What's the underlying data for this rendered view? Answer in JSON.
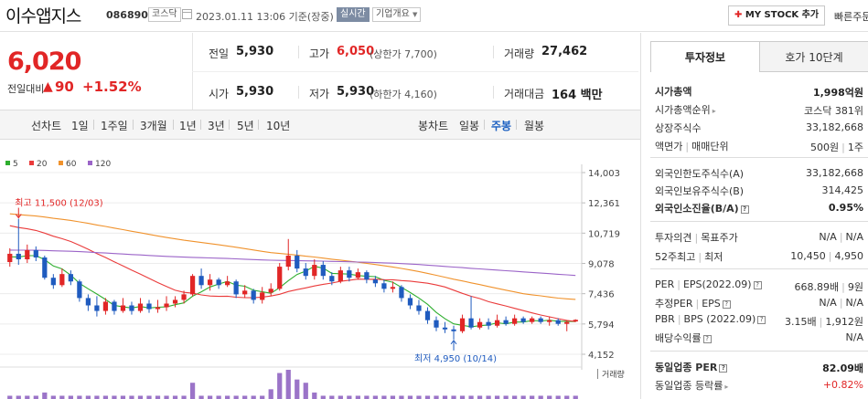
{
  "header": {
    "name": "이수앱지스",
    "code": "086890",
    "market": "코스닥",
    "datetime": "2023.01.11 13:06 기준(장중)",
    "realtime": "실시간",
    "overview": "기업개요",
    "mystock": "MY STOCK 추가",
    "quick": "빠른주문"
  },
  "price": {
    "current": "6,020",
    "prev_label": "전일대비",
    "up_mark": "▲",
    "change": "90",
    "pct": "+1.52%"
  },
  "stats": {
    "prev_label": "전일",
    "prev": "5,930",
    "high_label": "고가",
    "high": "6,050",
    "upper_limit": "(상한가 7,700)",
    "vol_label": "거래량",
    "volume": "27,462",
    "open_label": "시가",
    "open": "5,930",
    "low_label": "저가",
    "low": "5,930",
    "lower_limit": "(하한가 4,160)",
    "amt_label": "거래대금",
    "amount": "164 백만"
  },
  "chart_tabs": {
    "line_label": "선차트",
    "periods": [
      "1일",
      "1주일",
      "3개월",
      "1년",
      "3년",
      "5년",
      "10년"
    ],
    "candle_label": "봉차트",
    "candles": [
      "일봉",
      "주봉",
      "월봉"
    ],
    "active_candle": "주봉"
  },
  "chart_data": {
    "type": "candlestick",
    "legend": [
      {
        "name": "5",
        "color": "#2eae2e"
      },
      {
        "name": "20",
        "color": "#ea3b3b"
      },
      {
        "name": "60",
        "color": "#f0922c"
      },
      {
        "name": "120",
        "color": "#9b64c8"
      }
    ],
    "y_ticks": [
      "14,003",
      "12,361",
      "10,719",
      "9,078",
      "7,436",
      "5,794",
      "4,152"
    ],
    "ylim": [
      4152,
      14003
    ],
    "high_label": "최고 11,500 (12/03)",
    "low_label": "최저 4,950 (10/14)",
    "volume_label": "거래량",
    "candles": [
      {
        "o": 9150,
        "c": 9600,
        "h": 9900,
        "l": 8900
      },
      {
        "o": 9600,
        "c": 9300,
        "h": 11500,
        "l": 9000
      },
      {
        "o": 9300,
        "c": 9800,
        "h": 10100,
        "l": 9100
      },
      {
        "o": 9800,
        "c": 9400,
        "h": 10000,
        "l": 9200
      },
      {
        "o": 9400,
        "c": 8300,
        "h": 9500,
        "l": 8200
      },
      {
        "o": 8300,
        "c": 7900,
        "h": 8500,
        "l": 7700
      },
      {
        "o": 7900,
        "c": 8500,
        "h": 8800,
        "l": 7800
      },
      {
        "o": 8500,
        "c": 8100,
        "h": 8700,
        "l": 7900
      },
      {
        "o": 8100,
        "c": 7200,
        "h": 8200,
        "l": 7000
      },
      {
        "o": 7200,
        "c": 6800,
        "h": 7400,
        "l": 6500
      },
      {
        "o": 6800,
        "c": 6500,
        "h": 7300,
        "l": 6200
      },
      {
        "o": 6500,
        "c": 7000,
        "h": 7200,
        "l": 6300
      },
      {
        "o": 7000,
        "c": 6500,
        "h": 7100,
        "l": 6300
      },
      {
        "o": 6500,
        "c": 6800,
        "h": 7200,
        "l": 6400
      },
      {
        "o": 6800,
        "c": 6500,
        "h": 7000,
        "l": 6300
      },
      {
        "o": 6500,
        "c": 6900,
        "h": 7200,
        "l": 6400
      },
      {
        "o": 6900,
        "c": 6600,
        "h": 7100,
        "l": 6400
      },
      {
        "o": 6600,
        "c": 6700,
        "h": 7100,
        "l": 6400
      },
      {
        "o": 6700,
        "c": 6900,
        "h": 7300,
        "l": 6500
      },
      {
        "o": 6900,
        "c": 7100,
        "h": 7300,
        "l": 6700
      },
      {
        "o": 7100,
        "c": 7400,
        "h": 7600,
        "l": 6900
      },
      {
        "o": 7400,
        "c": 8400,
        "h": 8500,
        "l": 7300
      },
      {
        "o": 8400,
        "c": 7900,
        "h": 8800,
        "l": 7700
      },
      {
        "o": 7900,
        "c": 8200,
        "h": 8500,
        "l": 7600
      },
      {
        "o": 8200,
        "c": 7900,
        "h": 8300,
        "l": 7700
      },
      {
        "o": 7900,
        "c": 8100,
        "h": 8400,
        "l": 7800
      },
      {
        "o": 8100,
        "c": 7400,
        "h": 8200,
        "l": 7200
      },
      {
        "o": 7400,
        "c": 7600,
        "h": 7900,
        "l": 7200
      },
      {
        "o": 7600,
        "c": 7100,
        "h": 7700,
        "l": 6900
      },
      {
        "o": 7100,
        "c": 7500,
        "h": 7800,
        "l": 6900
      },
      {
        "o": 7500,
        "c": 7700,
        "h": 8000,
        "l": 7300
      },
      {
        "o": 7700,
        "c": 8900,
        "h": 9100,
        "l": 7600
      },
      {
        "o": 8900,
        "c": 9500,
        "h": 10400,
        "l": 8700
      },
      {
        "o": 9500,
        "c": 8800,
        "h": 9800,
        "l": 8600
      },
      {
        "o": 8800,
        "c": 8400,
        "h": 9100,
        "l": 8200
      },
      {
        "o": 8400,
        "c": 9000,
        "h": 9300,
        "l": 8200
      },
      {
        "o": 9000,
        "c": 8400,
        "h": 9200,
        "l": 8200
      },
      {
        "o": 8400,
        "c": 8100,
        "h": 8600,
        "l": 7900
      },
      {
        "o": 8100,
        "c": 8700,
        "h": 8900,
        "l": 8000
      },
      {
        "o": 8700,
        "c": 8300,
        "h": 8900,
        "l": 8100
      },
      {
        "o": 8300,
        "c": 8600,
        "h": 8800,
        "l": 8200
      },
      {
        "o": 8600,
        "c": 8200,
        "h": 8700,
        "l": 8000
      },
      {
        "o": 8200,
        "c": 8000,
        "h": 8400,
        "l": 7800
      },
      {
        "o": 8000,
        "c": 7700,
        "h": 8200,
        "l": 7500
      },
      {
        "o": 7700,
        "c": 7800,
        "h": 8100,
        "l": 7500
      },
      {
        "o": 7800,
        "c": 7200,
        "h": 7900,
        "l": 7000
      },
      {
        "o": 7200,
        "c": 6800,
        "h": 7400,
        "l": 6600
      },
      {
        "o": 6800,
        "c": 6500,
        "h": 7100,
        "l": 6300
      },
      {
        "o": 6500,
        "c": 6000,
        "h": 6700,
        "l": 5800
      },
      {
        "o": 6000,
        "c": 5600,
        "h": 6200,
        "l": 5400
      },
      {
        "o": 5600,
        "c": 5500,
        "h": 5900,
        "l": 5300
      },
      {
        "o": 5500,
        "c": 5400,
        "h": 5700,
        "l": 4950
      },
      {
        "o": 5400,
        "c": 6100,
        "h": 6300,
        "l": 5300
      },
      {
        "o": 6100,
        "c": 5600,
        "h": 7300,
        "l": 5500
      },
      {
        "o": 5600,
        "c": 5900,
        "h": 6100,
        "l": 5500
      },
      {
        "o": 5900,
        "c": 5700,
        "h": 6100,
        "l": 5500
      },
      {
        "o": 5700,
        "c": 6000,
        "h": 6300,
        "l": 5600
      },
      {
        "o": 6000,
        "c": 5800,
        "h": 6200,
        "l": 5700
      },
      {
        "o": 5800,
        "c": 6100,
        "h": 6300,
        "l": 5700
      },
      {
        "o": 6100,
        "c": 5900,
        "h": 6200,
        "l": 5800
      },
      {
        "o": 5900,
        "c": 6100,
        "h": 6200,
        "l": 5800
      },
      {
        "o": 6100,
        "c": 5900,
        "h": 6200,
        "l": 5800
      },
      {
        "o": 5900,
        "c": 6000,
        "h": 6200,
        "l": 5700
      },
      {
        "o": 6000,
        "c": 5800,
        "h": 6100,
        "l": 5700
      },
      {
        "o": 5800,
        "c": 5900,
        "h": 6000,
        "l": 5400
      },
      {
        "o": 5930,
        "c": 6020,
        "h": 6050,
        "l": 5900
      }
    ],
    "volumes": [
      1,
      1,
      1,
      1,
      2,
      1,
      1,
      1,
      1,
      1,
      1,
      1,
      1,
      1,
      1,
      1,
      1,
      1,
      1,
      1,
      1,
      5,
      1,
      1,
      1,
      1,
      1,
      1,
      1,
      1,
      3,
      8,
      9,
      6,
      5,
      2,
      1,
      1,
      1,
      1,
      1,
      1,
      1,
      1,
      1,
      1,
      1,
      1,
      1,
      1,
      1,
      1,
      1,
      1,
      1,
      1,
      1,
      1,
      1,
      1,
      1,
      1,
      1,
      1,
      1,
      1
    ]
  },
  "right_panel": {
    "tab_invest": "투자정보",
    "tab_hoga": "호가 10단계",
    "rows1": [
      {
        "label": "시가총액",
        "value": "1,998억원",
        "bold": true
      },
      {
        "label": "시가총액순위",
        "value": "코스닥 381위",
        "arrow": true
      },
      {
        "label": "상장주식수",
        "value": "33,182,668"
      },
      {
        "label": "액면가",
        "label2": "매매단위",
        "value": "500원",
        "value2": "1주"
      }
    ],
    "rows2": [
      {
        "label": "외국인한도주식수(A)",
        "value": "33,182,668"
      },
      {
        "label": "외국인보유주식수(B)",
        "value": "314,425"
      },
      {
        "label": "외국인소진율(B/A)",
        "value": "0.95%",
        "bold": true,
        "q": true
      }
    ],
    "rows3": [
      {
        "label": "투자의견",
        "label2": "목표주가",
        "value": "N/A",
        "value2": "N/A"
      },
      {
        "label": "52주최고",
        "label2": "최저",
        "value": "10,450",
        "value2": "4,950"
      }
    ],
    "rows4": [
      {
        "label": "PER",
        "label2": "EPS(2022.09)",
        "value": "668.89배",
        "value2": "9원",
        "q": true
      },
      {
        "label": "추정PER",
        "label2": "EPS",
        "value": "N/A",
        "value2": "N/A",
        "q": true
      },
      {
        "label": "PBR",
        "label2": "BPS (2022.09)",
        "value": "3.15배",
        "value2": "1,912원",
        "q": true
      },
      {
        "label": "배당수익률",
        "value": "N/A",
        "q": true
      }
    ],
    "rows5": [
      {
        "label": "동일업종 PER",
        "value": "82.09배",
        "bold": true,
        "q": true
      },
      {
        "label": "동일업종 등락률",
        "value": "+0.82%",
        "red": true,
        "arrow": true
      }
    ]
  }
}
